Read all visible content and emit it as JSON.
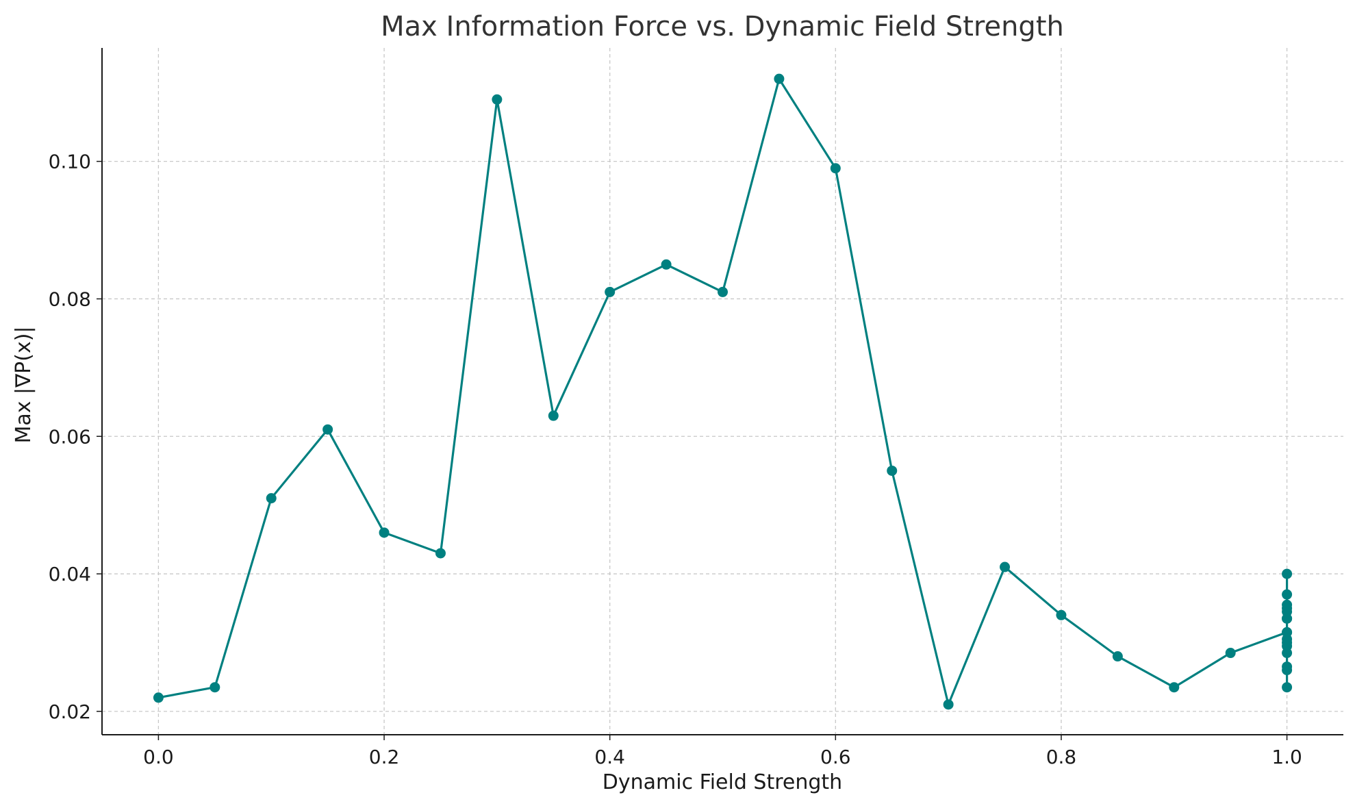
{
  "chart_data": {
    "type": "line",
    "title": "Max Information Force vs. Dynamic Field Strength",
    "xlabel": "Dynamic Field Strength",
    "ylabel": "Max |∇P(x)|",
    "xlim": [
      -0.05,
      1.05
    ],
    "ylim": [
      0.0166,
      0.1165
    ],
    "x_ticks": [
      0.0,
      0.2,
      0.4,
      0.6,
      0.8,
      1.0
    ],
    "x_tick_labels": [
      "0.0",
      "0.2",
      "0.4",
      "0.6",
      "0.8",
      "1.0"
    ],
    "y_ticks": [
      0.02,
      0.04,
      0.06,
      0.08,
      0.1
    ],
    "y_tick_labels": [
      "0.02",
      "0.04",
      "0.06",
      "0.08",
      "0.10"
    ],
    "grid": true,
    "legend": "none",
    "line_color": "#008080",
    "grid_color": "#c8c8c8",
    "series": [
      {
        "x": [
          0.0,
          0.05,
          0.1,
          0.15,
          0.2,
          0.25,
          0.3,
          0.35,
          0.4,
          0.45,
          0.5,
          0.55,
          0.6,
          0.65,
          0.7,
          0.75,
          0.8,
          0.85,
          0.9,
          0.95,
          1.0,
          1.0,
          1.0,
          1.0,
          1.0,
          1.0,
          1.0,
          1.0,
          1.0,
          1.0,
          1.0,
          1.0,
          1.0,
          1.0,
          1.0,
          1.0
        ],
        "y": [
          0.022,
          0.0235,
          0.051,
          0.061,
          0.046,
          0.043,
          0.109,
          0.063,
          0.081,
          0.085,
          0.081,
          0.112,
          0.099,
          0.055,
          0.021,
          0.041,
          0.034,
          0.028,
          0.0235,
          0.0285,
          0.0315,
          0.04,
          0.037,
          0.035,
          0.0335,
          0.03,
          0.0285,
          0.0265,
          0.026,
          0.0235,
          0.0355,
          0.0345,
          0.0305,
          0.0295,
          0.0315,
          0.0335
        ]
      }
    ]
  }
}
